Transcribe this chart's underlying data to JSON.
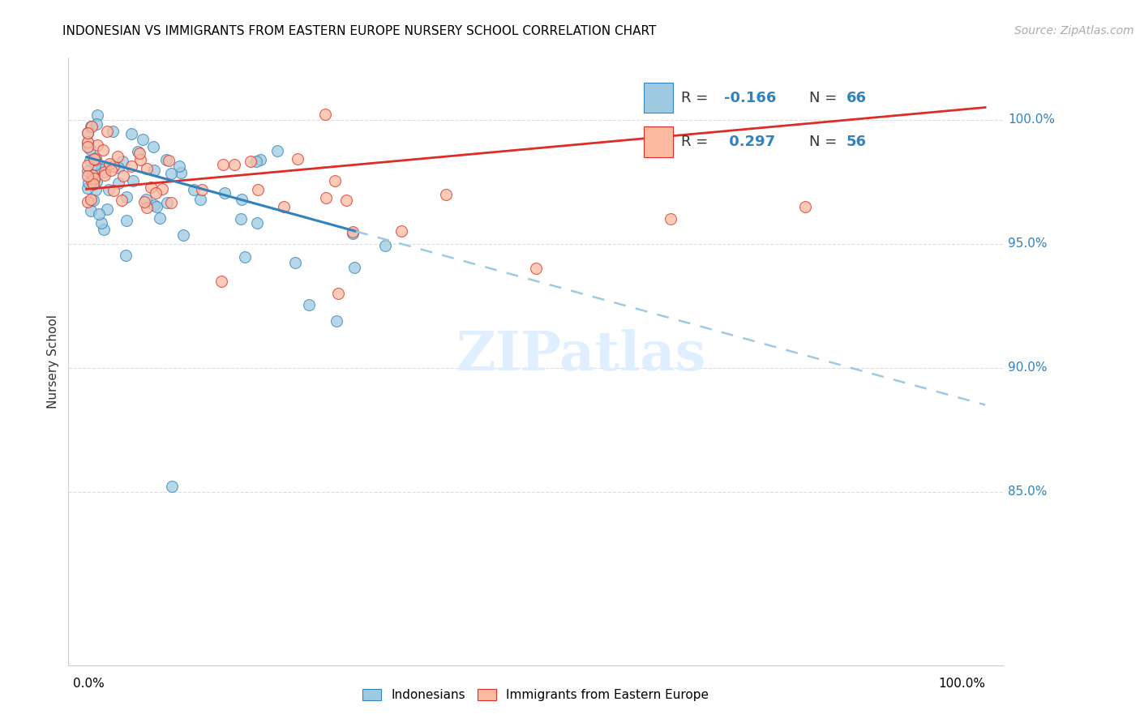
{
  "title": "INDONESIAN VS IMMIGRANTS FROM EASTERN EUROPE NURSERY SCHOOL CORRELATION CHART",
  "source": "Source: ZipAtlas.com",
  "ylabel": "Nursery School",
  "ytick_values": [
    85,
    90,
    95,
    100
  ],
  "ytick_labels": [
    "85.0%",
    "90.0%",
    "95.0%",
    "100.0%"
  ],
  "xlim": [
    -2,
    102
  ],
  "ylim": [
    78,
    102.5
  ],
  "blue_color": "#9ecae1",
  "pink_color": "#fcbba1",
  "blue_edge_color": "#3182bd",
  "pink_edge_color": "#de2d26",
  "blue_line_color": "#3182bd",
  "pink_line_color": "#de2d26",
  "dashed_line_color": "#9ecae1",
  "label_color": "#3182bd",
  "watermark_color": "#ddeeff",
  "grid_color": "#dddddd",
  "title_fontsize": 11,
  "source_fontsize": 10,
  "ytick_fontsize": 11,
  "ylabel_fontsize": 11,
  "legend_fontsize": 13,
  "scatter_size": 100,
  "blue_line_start_x": 0,
  "blue_line_solid_end_x": 30,
  "blue_line_end_x": 100,
  "blue_line_start_y": 98.5,
  "blue_line_end_y": 88.5,
  "pink_line_start_x": 0,
  "pink_line_end_x": 100,
  "pink_line_start_y": 97.2,
  "pink_line_end_y": 100.5
}
